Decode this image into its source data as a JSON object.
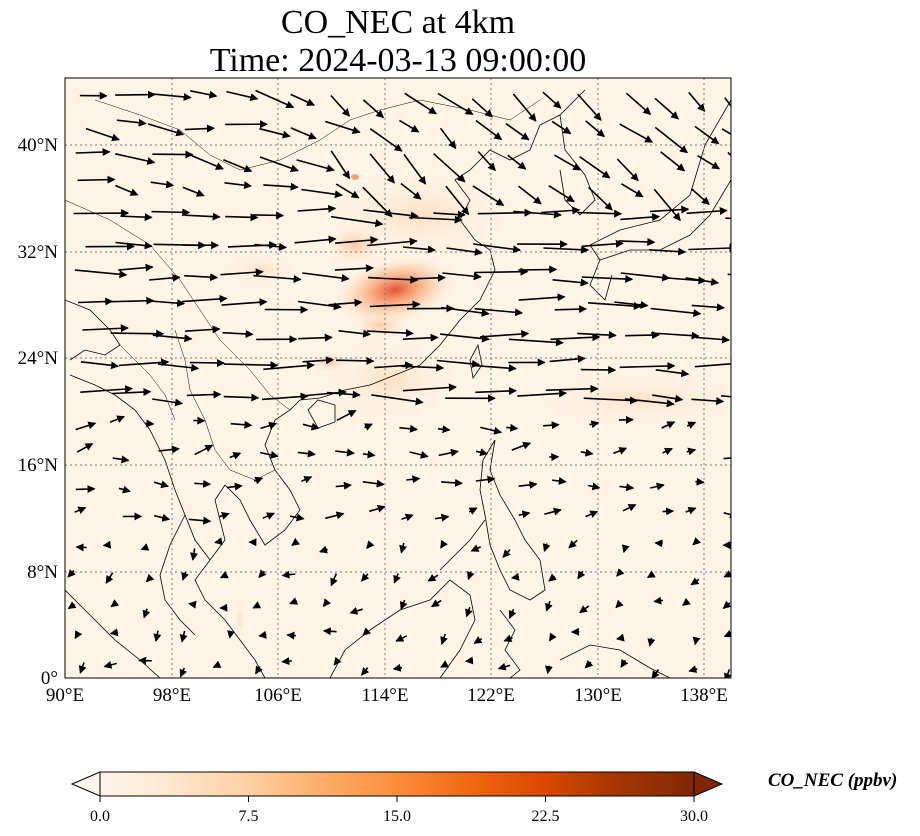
{
  "title": {
    "line1": "CO_NEC at 4km",
    "line2": "Time: 2024-03-13 09:00:00"
  },
  "map": {
    "lon_range": [
      90,
      140
    ],
    "lat_range": [
      0,
      45
    ],
    "lon_ticks": [
      "90°E",
      "98°E",
      "106°E",
      "114°E",
      "122°E",
      "130°E",
      "138°E"
    ],
    "lat_ticks": [
      "0°",
      "8°N",
      "16°N",
      "24°N",
      "32°N",
      "40°N"
    ],
    "gridlines": true,
    "field": "CO_NEC",
    "wind_vectors": true,
    "plume_center_lon_lat": [
      114.5,
      29.0
    ]
  },
  "colorbar": {
    "ticks": [
      "0.0",
      "7.5",
      "15.0",
      "22.5",
      "30.0"
    ],
    "range": [
      0,
      30
    ],
    "extend": "both",
    "label": "CO_NEC (ppbv)",
    "colormap": [
      "#fff5eb",
      "#fee6ce",
      "#fdd0a2",
      "#fdae6b",
      "#fd8d3c",
      "#f16913",
      "#d94801",
      "#a63603",
      "#7f2704"
    ]
  }
}
